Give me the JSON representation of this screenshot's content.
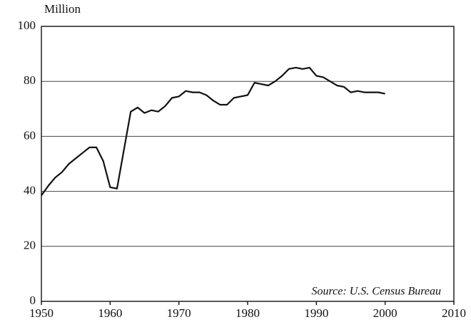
{
  "chart_data": {
    "type": "line",
    "y_axis_label": "Million",
    "annotation": "Source: U.S. Census Bureau",
    "x": [
      1950,
      1951,
      1952,
      1953,
      1954,
      1955,
      1956,
      1957,
      1958,
      1959,
      1960,
      1961,
      1962,
      1963,
      1964,
      1965,
      1966,
      1967,
      1968,
      1969,
      1970,
      1971,
      1972,
      1973,
      1974,
      1975,
      1976,
      1977,
      1978,
      1979,
      1980,
      1981,
      1982,
      1983,
      1984,
      1985,
      1986,
      1987,
      1988,
      1989,
      1990,
      1991,
      1992,
      1993,
      1994,
      1995,
      1996,
      1997,
      1998,
      1999,
      2000
    ],
    "series": [
      {
        "color": "#111111",
        "values": [
          38.5,
          42,
          45,
          47,
          50,
          52,
          54,
          56,
          56,
          51,
          41.5,
          41,
          55,
          69,
          70.5,
          68.5,
          69.5,
          69,
          71,
          74,
          74.5,
          76.5,
          76,
          76,
          75,
          73,
          71.5,
          71.5,
          74,
          74.5,
          75,
          79.5,
          79,
          78.5,
          80,
          82,
          84.5,
          85,
          84.5,
          85,
          82,
          81.5,
          80,
          78.5,
          78,
          76,
          76.5,
          76,
          76,
          76,
          75.5
        ]
      }
    ],
    "xlim": [
      1950,
      2010
    ],
    "xticks": [
      1950,
      1960,
      1970,
      1980,
      1990,
      2000,
      2010
    ],
    "ylim": [
      0,
      100
    ],
    "yticks": [
      0,
      20,
      40,
      60,
      80,
      100
    ],
    "grid": true
  }
}
